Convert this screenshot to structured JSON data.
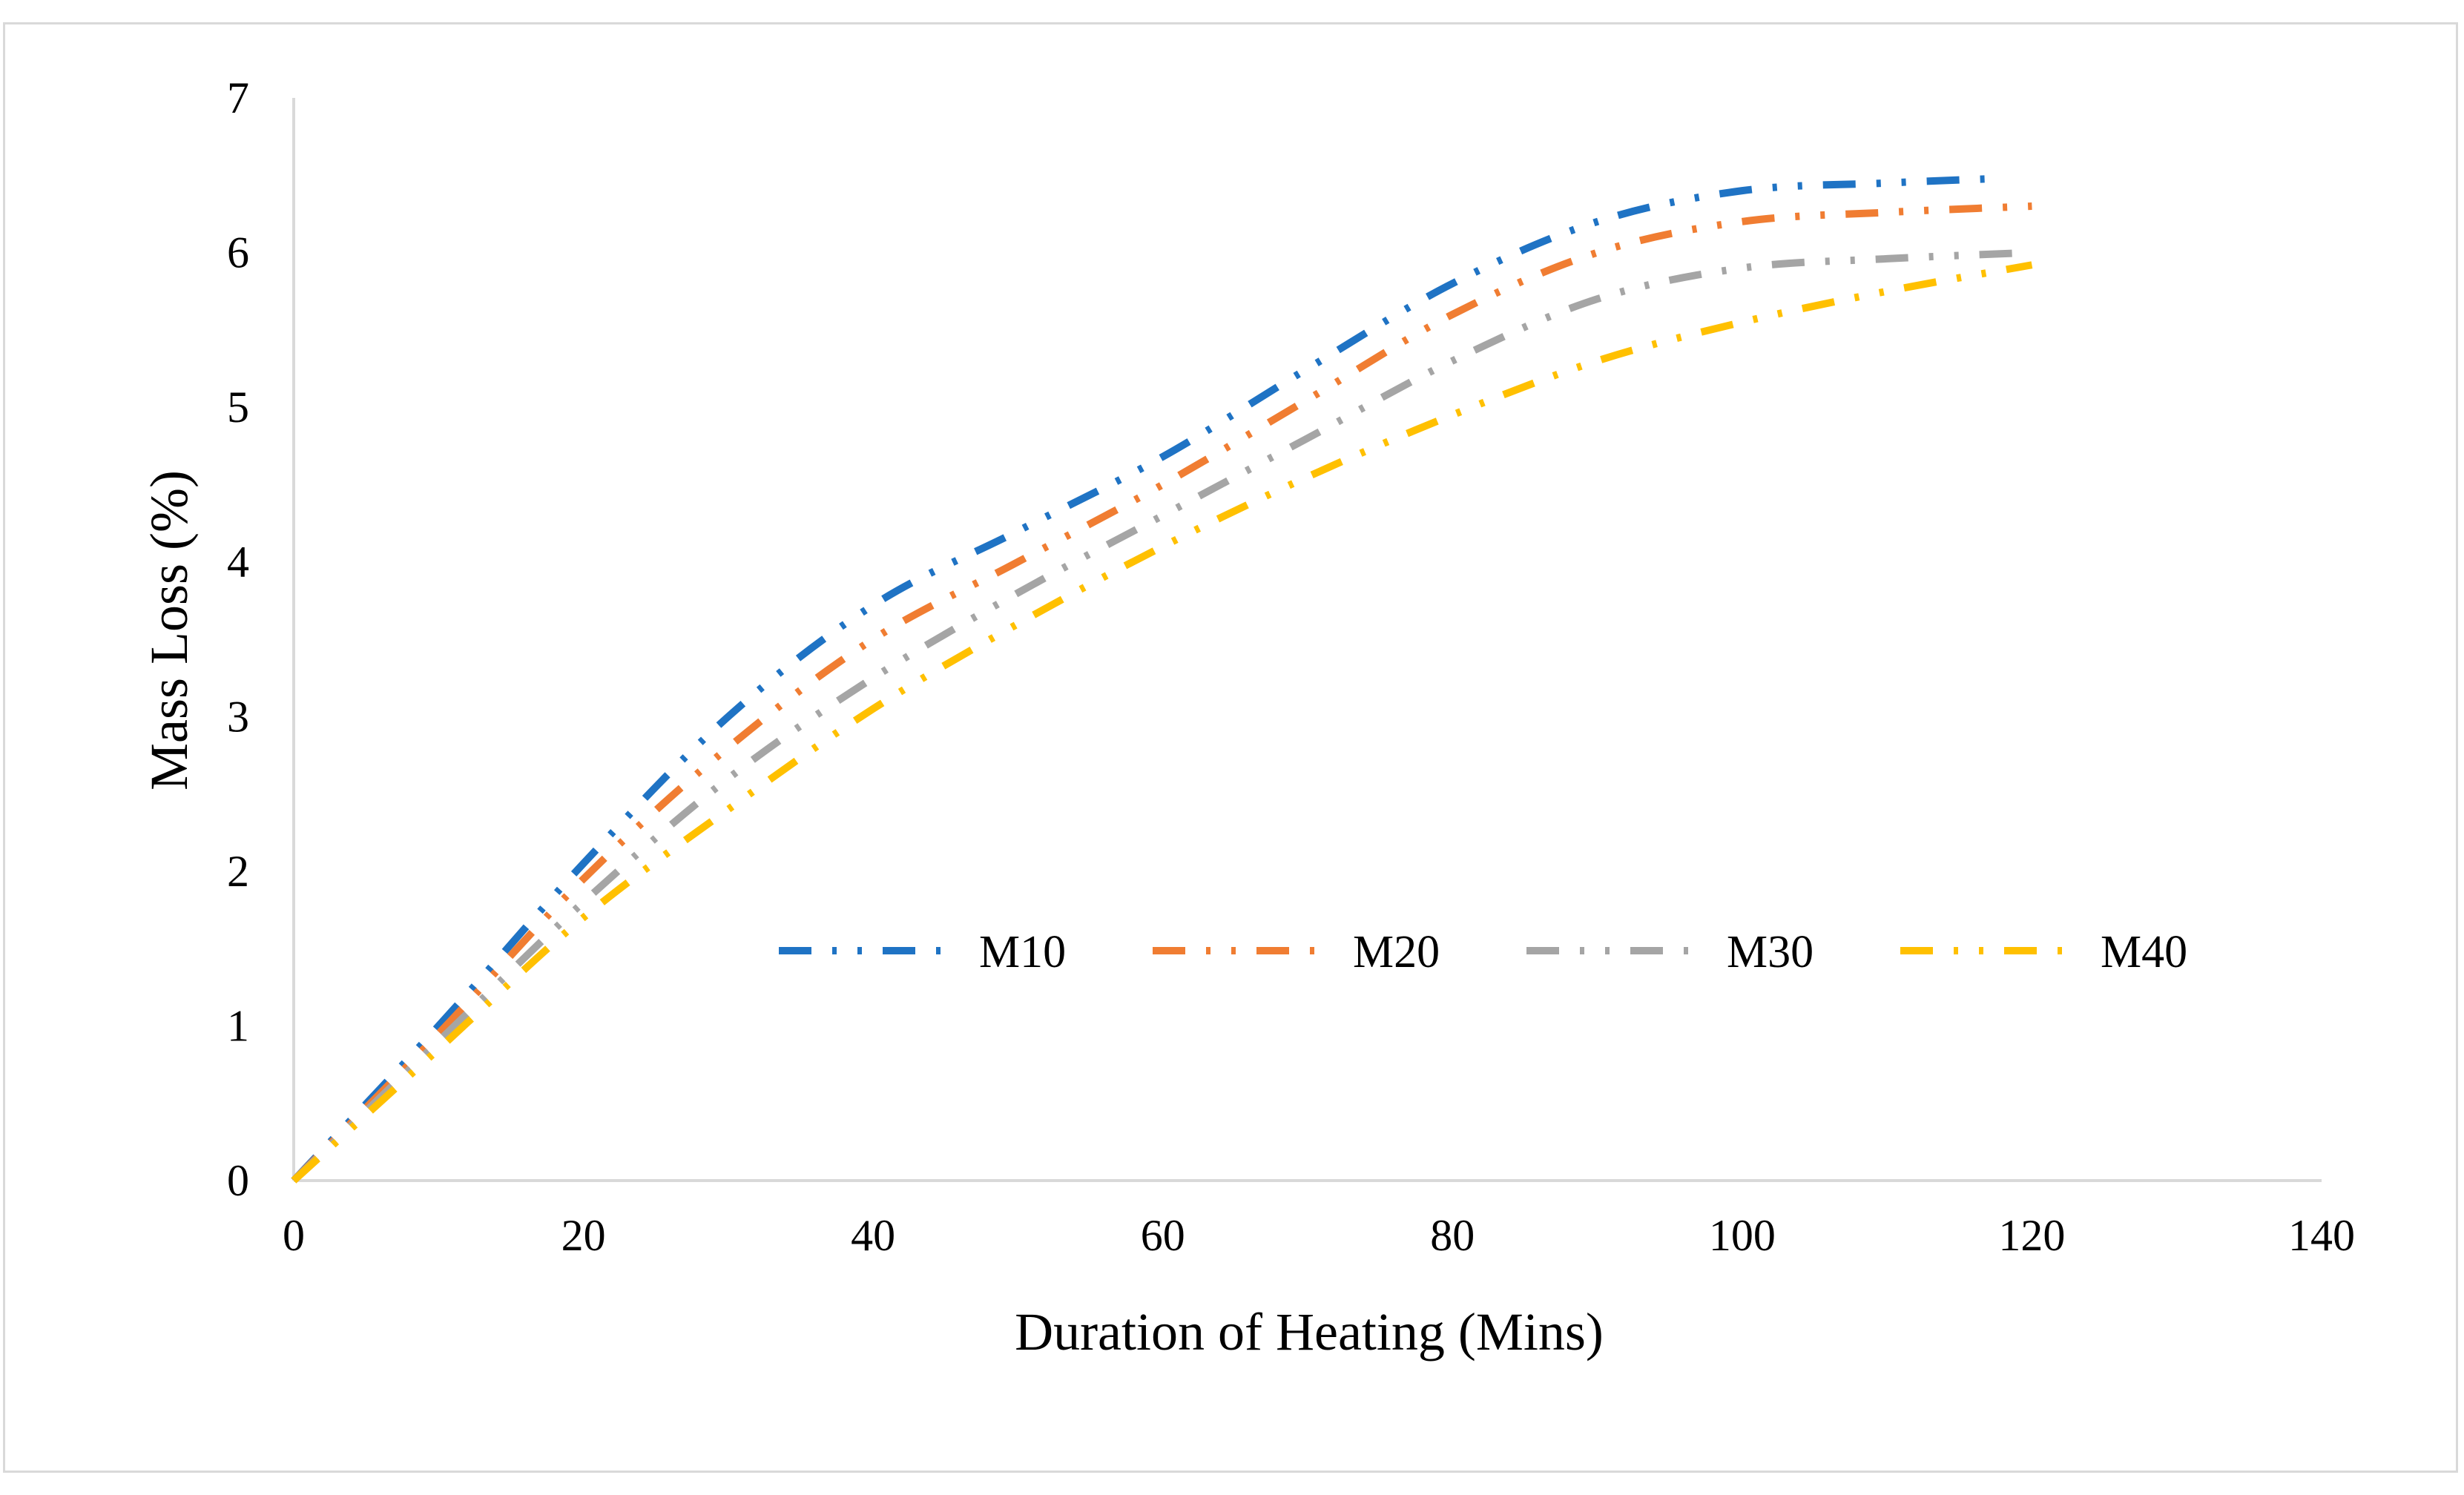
{
  "chart_data": {
    "type": "line",
    "title": "",
    "xlabel": "Duration of Heating (Mins)",
    "ylabel": "Mass Loss (%)",
    "xlim": [
      0,
      140
    ],
    "ylim": [
      0,
      7
    ],
    "xticks": [
      0,
      20,
      40,
      60,
      80,
      100,
      120,
      140
    ],
    "yticks": [
      0,
      1,
      2,
      3,
      4,
      5,
      6,
      7
    ],
    "grid": false,
    "legend_position": "inside-middle",
    "series": [
      {
        "name": "M10",
        "color": "#1F73C4",
        "x": [
          0,
          10,
          20,
          30,
          40,
          50,
          60,
          70,
          80,
          90,
          100,
          110,
          118
        ],
        "y": [
          0,
          1.0,
          2.05,
          3.0,
          3.72,
          4.2,
          4.68,
          5.25,
          5.8,
          6.2,
          6.4,
          6.45,
          6.48
        ]
      },
      {
        "name": "M20",
        "color": "#F07D32",
        "x": [
          0,
          10,
          20,
          30,
          40,
          50,
          60,
          70,
          80,
          90,
          100,
          110,
          120
        ],
        "y": [
          0,
          0.95,
          1.95,
          2.8,
          3.5,
          4.0,
          4.5,
          5.05,
          5.6,
          6.0,
          6.2,
          6.26,
          6.3
        ]
      },
      {
        "name": "M30",
        "color": "#A5A5A5",
        "x": [
          0,
          10,
          20,
          30,
          40,
          50,
          60,
          70,
          80,
          90,
          100,
          110,
          120
        ],
        "y": [
          0,
          0.9,
          1.8,
          2.6,
          3.25,
          3.8,
          4.3,
          4.8,
          5.3,
          5.7,
          5.9,
          5.96,
          6.0
        ]
      },
      {
        "name": "M40",
        "color": "#FFC000",
        "x": [
          0,
          10,
          20,
          30,
          40,
          50,
          60,
          70,
          80,
          90,
          100,
          110,
          120
        ],
        "y": [
          0,
          0.85,
          1.7,
          2.4,
          3.05,
          3.6,
          4.1,
          4.55,
          4.95,
          5.3,
          5.55,
          5.75,
          5.92
        ]
      }
    ]
  }
}
